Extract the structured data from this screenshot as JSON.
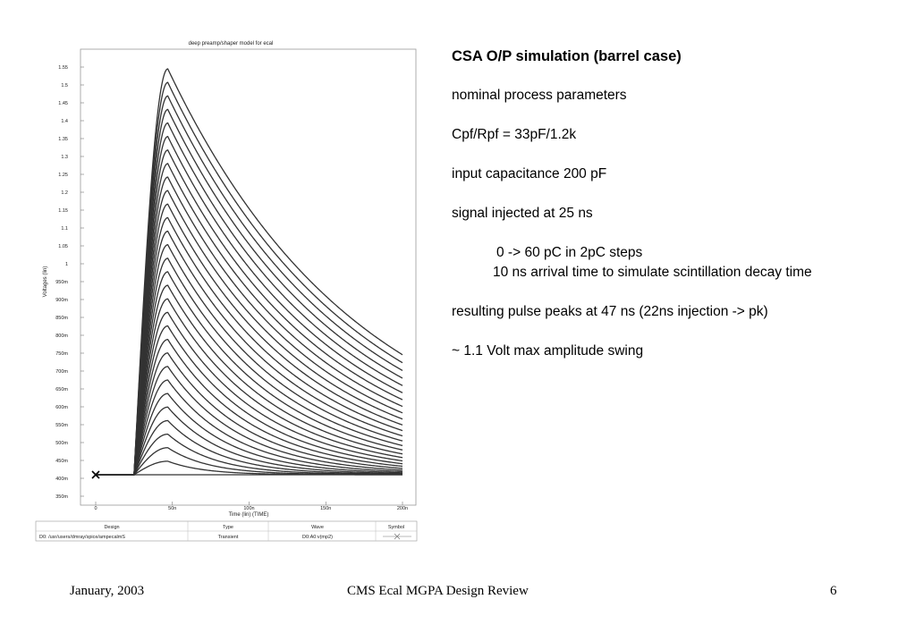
{
  "slide": {
    "heading": "CSA O/P simulation (barrel case)",
    "line1": "nominal process parameters",
    "line2": "Cpf/Rpf = 33pF/1.2k",
    "line3": "input capacitance 200 pF",
    "line4": "signal injected at 25 ns",
    "line5a": "0 -> 60 pC in 2pC steps",
    "line5b": "10 ns arrival time to simulate scintillation decay time",
    "line6": "resulting pulse peaks at 47 ns (22ns injection -> pk)",
    "line7": "~ 1.1 Volt max amplitude swing"
  },
  "footer": {
    "date": "January, 2003",
    "title": "CMS Ecal MGPA Design Review",
    "page": "6"
  },
  "legend_table": {
    "headers": [
      "Design",
      "Type",
      "Wave",
      "Symbol"
    ],
    "row": [
      "D0: /usr/users/dmray/spice/ampecalmS",
      "Transient",
      "D0:A0:v(mp2)"
    ]
  },
  "chart_data": {
    "type": "line",
    "title": "deep preamp/shaper model for ecal",
    "xlabel": "Time (lin) (TIME)",
    "ylabel": "Voltages (lin)",
    "xlim": [
      0,
      200
    ],
    "ylim": [
      0.35,
      1.55
    ],
    "x_ticks": [
      0,
      50,
      100,
      150,
      200
    ],
    "x_tick_labels": [
      "0",
      "50n",
      "100n",
      "150n",
      "200n"
    ],
    "y_ticks": [
      0.35,
      0.4,
      0.45,
      0.5,
      0.55,
      0.6,
      0.65,
      0.7,
      0.75,
      0.8,
      0.85,
      0.9,
      0.95,
      1.0,
      1.05,
      1.1,
      1.15,
      1.2,
      1.25,
      1.3,
      1.35,
      1.4,
      1.45,
      1.5,
      1.55
    ],
    "y_tick_labels": [
      "350m",
      "400m",
      "450m",
      "500m",
      "550m",
      "600m",
      "650m",
      "700m",
      "750m",
      "800m",
      "850m",
      "900m",
      "950m",
      "1",
      "1.05",
      "1.1",
      "1.15",
      "1.2",
      "1.25",
      "1.3",
      "1.35",
      "1.4",
      "1.45",
      "1.5",
      "1.55"
    ],
    "baseline": 0.41,
    "injection_time": 25,
    "peak_time": 47,
    "max_peak": 1.545,
    "num_curves": 31,
    "end_time": 200,
    "marker": {
      "x": 0,
      "y": 0.41,
      "symbol": "x"
    }
  }
}
